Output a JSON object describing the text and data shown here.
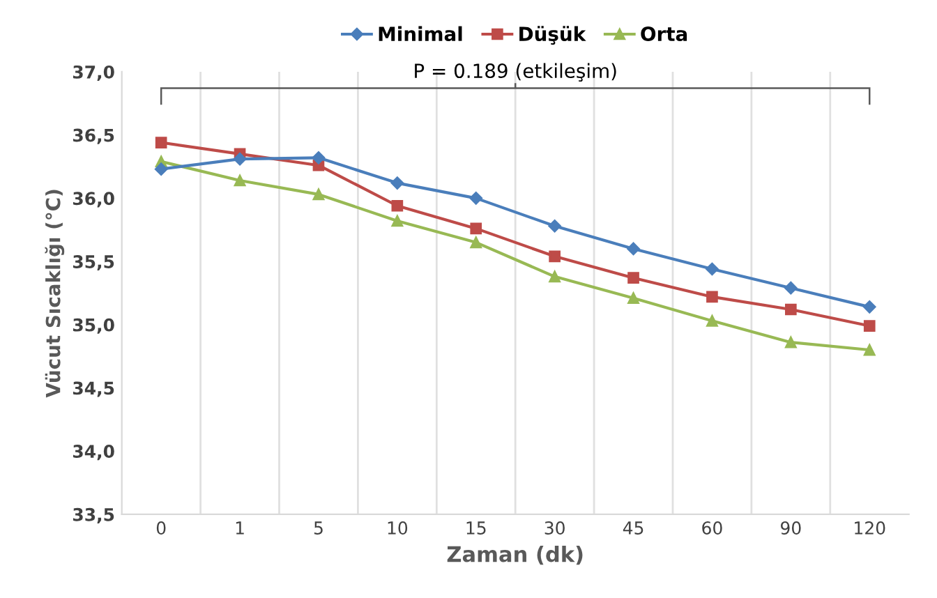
{
  "chart_data": {
    "type": "line",
    "xlabel": "Zaman (dk)",
    "ylabel": "Vücut Sıcaklığı (°C)",
    "categories": [
      "0",
      "1",
      "5",
      "10",
      "15",
      "30",
      "45",
      "60",
      "90",
      "120"
    ],
    "series": [
      {
        "name": "Minimal",
        "color": "#4a7ebb",
        "marker": "diamond",
        "values": [
          36.23,
          36.31,
          36.32,
          36.12,
          36.0,
          35.78,
          35.6,
          35.44,
          35.29,
          35.14
        ]
      },
      {
        "name": "Düşük",
        "color": "#be4b48",
        "marker": "square",
        "values": [
          36.44,
          36.35,
          36.26,
          35.94,
          35.76,
          35.54,
          35.37,
          35.22,
          35.12,
          34.99
        ]
      },
      {
        "name": "Orta",
        "color": "#98b954",
        "marker": "triangle",
        "values": [
          36.29,
          36.14,
          36.03,
          35.82,
          35.65,
          35.38,
          35.21,
          35.03,
          34.86,
          34.8
        ]
      }
    ],
    "ylim": [
      33.5,
      37.0
    ],
    "yticks": [
      {
        "value": 33.5,
        "label": "33,5"
      },
      {
        "value": 34.0,
        "label": "34,0"
      },
      {
        "value": 34.5,
        "label": "34,5"
      },
      {
        "value": 35.0,
        "label": "35,0"
      },
      {
        "value": 35.5,
        "label": "35,5"
      },
      {
        "value": 36.0,
        "label": "36,0"
      },
      {
        "value": 36.5,
        "label": "36,5"
      },
      {
        "value": 37.0,
        "label": "37,0"
      }
    ],
    "annotations": [
      "P = 0.189 (etkileşim)"
    ],
    "grid": "x",
    "legend": "top",
    "line_style": "solid"
  }
}
